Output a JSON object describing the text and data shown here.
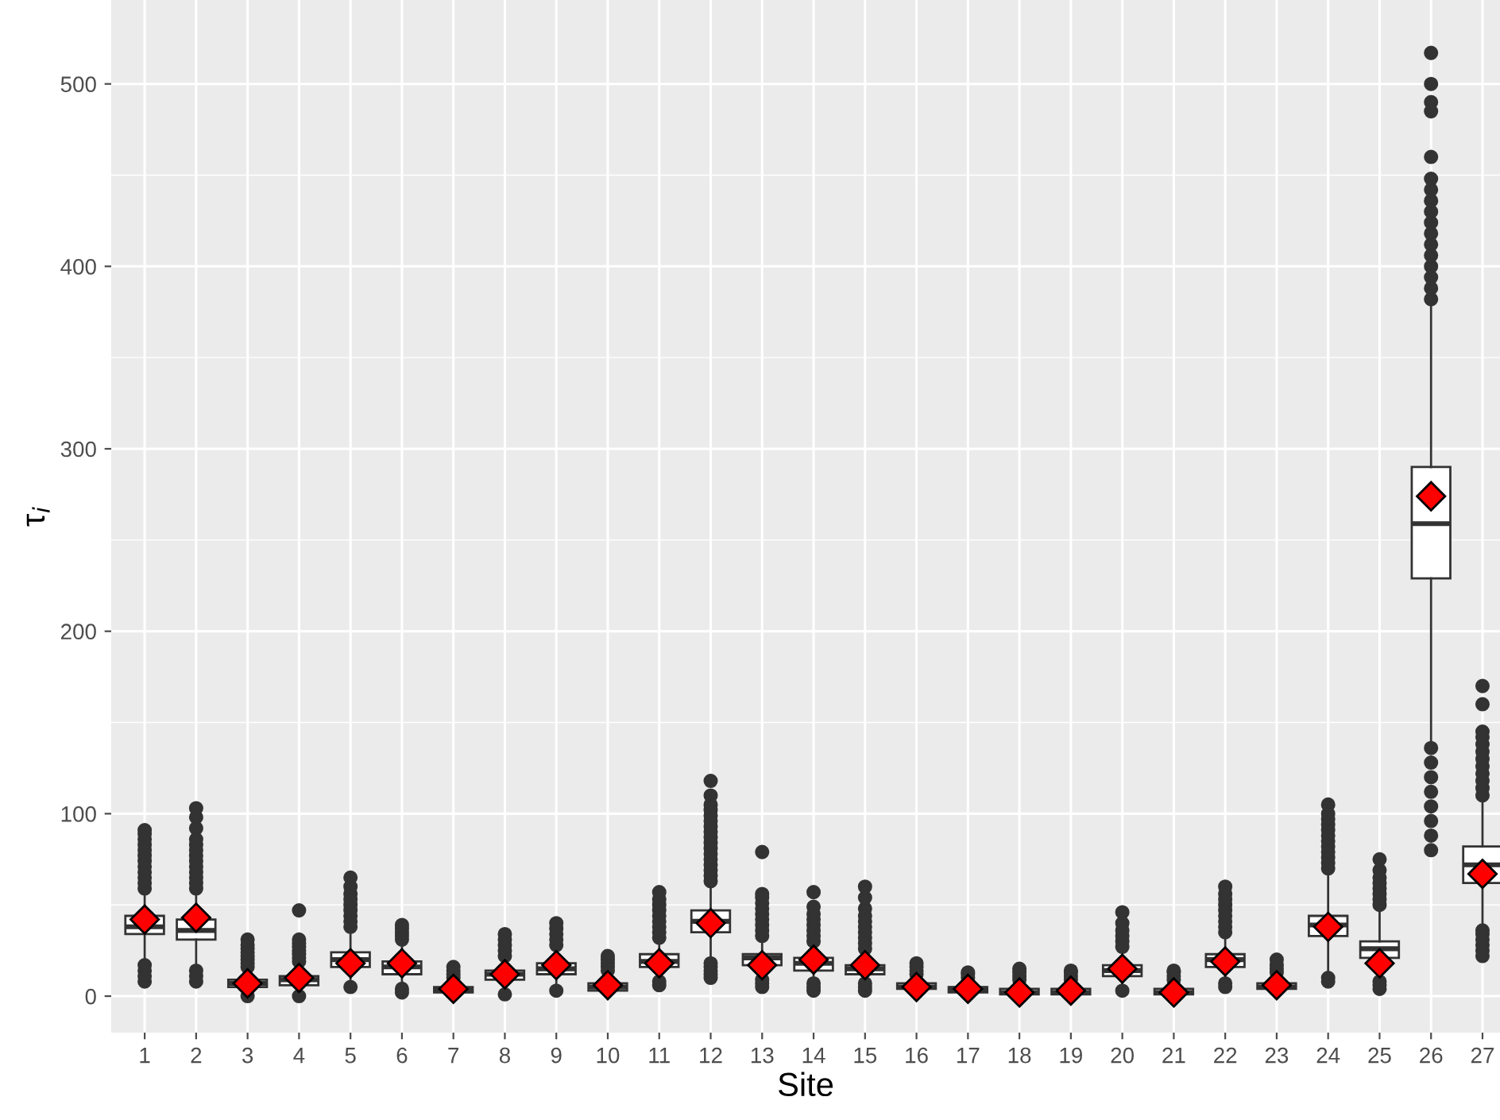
{
  "chart_data": {
    "type": "box",
    "xlabel": "Site",
    "ylabel": "τ$_{i}$",
    "categories": [
      "1",
      "2",
      "3",
      "4",
      "5",
      "6",
      "7",
      "8",
      "9",
      "10",
      "11",
      "12",
      "13",
      "14",
      "15",
      "16",
      "17",
      "18",
      "19",
      "20",
      "21",
      "22",
      "23",
      "24",
      "25",
      "26",
      "27"
    ],
    "ylim": [
      -20,
      546
    ],
    "yticks": [
      0,
      100,
      200,
      300,
      400,
      500
    ],
    "grid": true,
    "marker": "diamond",
    "boxes": [
      {
        "low": 20,
        "q1": 34,
        "median": 38,
        "q3": 44,
        "high": 56,
        "mean": 42,
        "outliers": [
          8,
          11,
          14,
          17,
          59,
          62,
          65,
          68,
          71,
          74,
          77,
          80,
          83,
          86,
          89,
          91
        ]
      },
      {
        "low": 16,
        "q1": 31,
        "median": 36,
        "q3": 42,
        "high": 57,
        "mean": 43,
        "outliers": [
          8,
          11,
          14,
          59,
          62,
          65,
          68,
          71,
          74,
          77,
          80,
          83,
          86,
          92,
          98,
          103
        ]
      },
      {
        "low": 2,
        "q1": 5,
        "median": 7,
        "q3": 9,
        "high": 14,
        "mean": 7,
        "outliers": [
          0,
          16,
          18,
          20,
          22,
          24,
          26,
          28,
          31
        ]
      },
      {
        "low": 2,
        "q1": 6,
        "median": 9,
        "q3": 11,
        "high": 17,
        "mean": 10,
        "outliers": [
          0,
          19,
          21,
          23,
          25,
          27,
          29,
          31,
          47
        ]
      },
      {
        "low": 8,
        "q1": 16,
        "median": 20,
        "q3": 24,
        "high": 36,
        "mean": 18,
        "outliers": [
          5,
          38,
          41,
          44,
          47,
          50,
          53,
          56,
          60,
          65
        ]
      },
      {
        "low": 6,
        "q1": 12,
        "median": 16,
        "q3": 19,
        "high": 29,
        "mean": 18,
        "outliers": [
          2,
          4,
          31,
          33,
          35,
          37,
          39
        ]
      },
      {
        "low": 0,
        "q1": 2,
        "median": 3,
        "q3": 5,
        "high": 9,
        "mean": 4,
        "outliers": [
          10,
          12,
          14,
          16
        ]
      },
      {
        "low": 3,
        "q1": 9,
        "median": 12,
        "q3": 14,
        "high": 21,
        "mean": 12,
        "outliers": [
          1,
          22,
          25,
          28,
          31,
          34
        ]
      },
      {
        "low": 5,
        "q1": 12,
        "median": 15,
        "q3": 18,
        "high": 27,
        "mean": 17,
        "outliers": [
          3,
          28,
          31,
          34,
          37,
          40
        ]
      },
      {
        "low": 0,
        "q1": 3,
        "median": 5,
        "q3": 7,
        "high": 13,
        "mean": 6,
        "outliers": [
          14,
          16,
          18,
          20,
          22
        ]
      },
      {
        "low": 10,
        "q1": 16,
        "median": 19,
        "q3": 23,
        "high": 30,
        "mean": 18,
        "outliers": [
          6,
          8,
          32,
          35,
          38,
          41,
          44,
          47,
          50,
          53,
          57
        ]
      },
      {
        "low": 19,
        "q1": 35,
        "median": 41,
        "q3": 47,
        "high": 61,
        "mean": 40,
        "outliers": [
          10,
          12,
          14,
          16,
          18,
          63,
          66,
          69,
          72,
          75,
          78,
          81,
          84,
          87,
          90,
          93,
          96,
          99,
          102,
          105,
          110,
          118
        ]
      },
      {
        "low": 10,
        "q1": 17,
        "median": 21,
        "q3": 23,
        "high": 31,
        "mean": 17,
        "outliers": [
          5,
          7,
          9,
          33,
          36,
          39,
          42,
          45,
          48,
          51,
          54,
          56,
          79
        ]
      },
      {
        "low": 8,
        "q1": 14,
        "median": 18,
        "q3": 21,
        "high": 28,
        "mean": 20,
        "outliers": [
          3,
          5,
          7,
          30,
          33,
          36,
          39,
          42,
          45,
          49,
          57
        ]
      },
      {
        "low": 8,
        "q1": 12,
        "median": 15,
        "q3": 17,
        "high": 24,
        "mean": 17,
        "outliers": [
          3,
          5,
          7,
          26,
          29,
          32,
          35,
          38,
          41,
          44,
          48,
          54,
          60
        ]
      },
      {
        "low": 1,
        "q1": 4,
        "median": 5,
        "q3": 7,
        "high": 11,
        "mean": 5,
        "outliers": [
          12,
          14,
          16,
          18
        ]
      },
      {
        "low": 0,
        "q1": 2,
        "median": 4,
        "q3": 5,
        "high": 9,
        "mean": 4,
        "outliers": [
          10,
          12,
          13
        ]
      },
      {
        "low": 0,
        "q1": 1,
        "median": 2,
        "q3": 4,
        "high": 8,
        "mean": 2,
        "outliers": [
          9,
          11,
          13,
          15
        ]
      },
      {
        "low": 0,
        "q1": 1,
        "median": 2,
        "q3": 4,
        "high": 8,
        "mean": 3,
        "outliers": [
          9,
          11,
          13,
          14
        ]
      },
      {
        "low": 5,
        "q1": 11,
        "median": 14,
        "q3": 17,
        "high": 25,
        "mean": 15,
        "outliers": [
          3,
          27,
          30,
          33,
          36,
          40,
          46
        ]
      },
      {
        "low": 0,
        "q1": 1,
        "median": 2,
        "q3": 4,
        "high": 8,
        "mean": 2,
        "outliers": [
          9,
          11,
          13,
          14
        ]
      },
      {
        "low": 9,
        "q1": 16,
        "median": 20,
        "q3": 23,
        "high": 33,
        "mean": 19,
        "outliers": [
          5,
          7,
          35,
          38,
          41,
          44,
          47,
          50,
          53,
          56,
          60
        ]
      },
      {
        "low": 0,
        "q1": 4,
        "median": 5,
        "q3": 7,
        "high": 12,
        "mean": 6,
        "outliers": [
          13,
          15,
          17,
          20
        ]
      },
      {
        "low": 12,
        "q1": 33,
        "median": 39,
        "q3": 44,
        "high": 67,
        "mean": 38,
        "outliers": [
          8,
          10,
          70,
          73,
          76,
          79,
          82,
          85,
          88,
          91,
          94,
          97,
          100,
          105
        ]
      },
      {
        "low": 10,
        "q1": 21,
        "median": 26,
        "q3": 30,
        "high": 47,
        "mean": 18,
        "outliers": [
          4,
          6,
          8,
          50,
          53,
          56,
          59,
          62,
          65,
          69,
          75
        ]
      },
      {
        "low": 140,
        "q1": 229,
        "median": 259,
        "q3": 290,
        "high": 379,
        "mean": 274,
        "outliers": [
          80,
          88,
          96,
          104,
          112,
          120,
          128,
          136,
          382,
          388,
          394,
          400,
          406,
          412,
          418,
          424,
          430,
          436,
          442,
          448,
          460,
          485,
          490,
          500,
          517
        ]
      },
      {
        "low": 38,
        "q1": 62,
        "median": 72,
        "q3": 82,
        "high": 108,
        "mean": 67,
        "outliers": [
          22,
          25,
          28,
          31,
          34,
          36,
          110,
          114,
          118,
          122,
          126,
          130,
          134,
          138,
          142,
          145,
          160,
          170
        ]
      }
    ]
  }
}
